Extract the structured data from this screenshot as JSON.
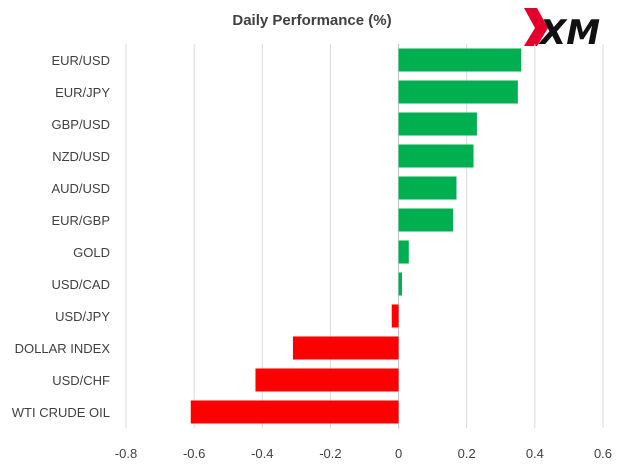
{
  "logo": {
    "text": "XM",
    "accent_color": "#e4002b"
  },
  "chart_data": {
    "type": "bar",
    "orientation": "horizontal",
    "title": "Daily Performance (%)",
    "xlabel": "",
    "ylabel": "",
    "categories": [
      "EUR/USD",
      "EUR/JPY",
      "GBP/USD",
      "NZD/USD",
      "AUD/USD",
      "EUR/GBP",
      "GOLD",
      "USD/CAD",
      "USD/JPY",
      "DOLLAR INDEX",
      "USD/CHF",
      "WTI CRUDE OIL"
    ],
    "values": [
      0.36,
      0.35,
      0.23,
      0.22,
      0.17,
      0.16,
      0.03,
      0.01,
      -0.02,
      -0.31,
      -0.42,
      -0.61
    ],
    "xlim": [
      -0.8,
      0.6
    ],
    "xticks": [
      -0.8,
      -0.6,
      -0.4,
      -0.2,
      0,
      0.2,
      0.4,
      0.6
    ],
    "xtick_labels": [
      "-0.8",
      "-0.6",
      "-0.4",
      "-0.2",
      "0",
      "0.2",
      "0.4",
      "0.6"
    ],
    "grid": "vertical",
    "legend": "none",
    "colors": {
      "positive": "#00b050",
      "negative": "#ff0000"
    }
  }
}
